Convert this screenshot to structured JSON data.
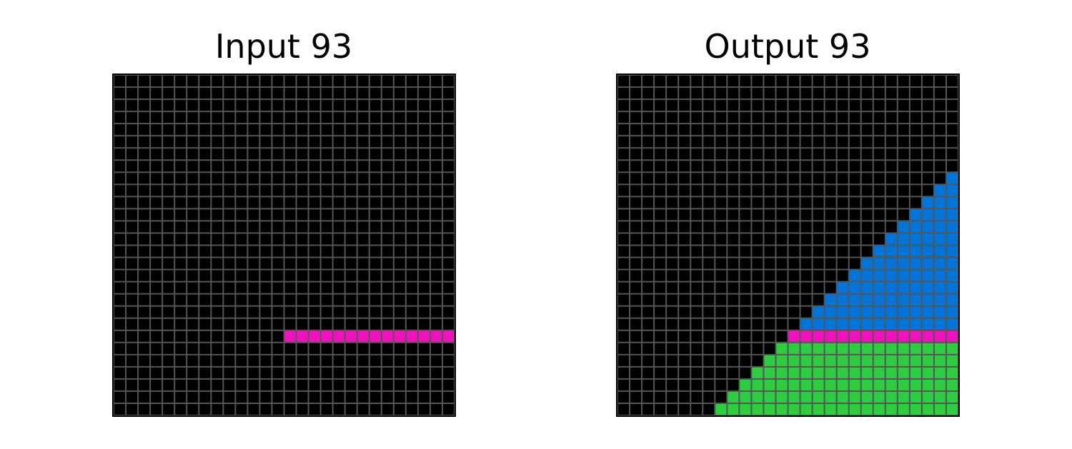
{
  "panels": [
    {
      "title": "Input 93",
      "grid_size": 28,
      "segments": [
        {
          "row": 21,
          "col_start": 14,
          "col_end": 27,
          "color": "magenta"
        }
      ]
    },
    {
      "title": "Output 93",
      "grid_size": 28,
      "segments": [
        {
          "row": 8,
          "col_start": 27,
          "col_end": 27,
          "color": "blue"
        },
        {
          "row": 9,
          "col_start": 26,
          "col_end": 27,
          "color": "blue"
        },
        {
          "row": 10,
          "col_start": 25,
          "col_end": 27,
          "color": "blue"
        },
        {
          "row": 11,
          "col_start": 24,
          "col_end": 27,
          "color": "blue"
        },
        {
          "row": 12,
          "col_start": 23,
          "col_end": 27,
          "color": "blue"
        },
        {
          "row": 13,
          "col_start": 22,
          "col_end": 27,
          "color": "blue"
        },
        {
          "row": 14,
          "col_start": 21,
          "col_end": 27,
          "color": "blue"
        },
        {
          "row": 15,
          "col_start": 20,
          "col_end": 27,
          "color": "blue"
        },
        {
          "row": 16,
          "col_start": 19,
          "col_end": 27,
          "color": "blue"
        },
        {
          "row": 17,
          "col_start": 18,
          "col_end": 27,
          "color": "blue"
        },
        {
          "row": 18,
          "col_start": 17,
          "col_end": 27,
          "color": "blue"
        },
        {
          "row": 19,
          "col_start": 16,
          "col_end": 27,
          "color": "blue"
        },
        {
          "row": 20,
          "col_start": 15,
          "col_end": 27,
          "color": "blue"
        },
        {
          "row": 21,
          "col_start": 14,
          "col_end": 27,
          "color": "magenta"
        },
        {
          "row": 22,
          "col_start": 13,
          "col_end": 27,
          "color": "green"
        },
        {
          "row": 23,
          "col_start": 12,
          "col_end": 27,
          "color": "green"
        },
        {
          "row": 24,
          "col_start": 11,
          "col_end": 27,
          "color": "green"
        },
        {
          "row": 25,
          "col_start": 10,
          "col_end": 27,
          "color": "green"
        },
        {
          "row": 26,
          "col_start": 9,
          "col_end": 27,
          "color": "green"
        },
        {
          "row": 27,
          "col_start": 8,
          "col_end": 27,
          "color": "green"
        }
      ]
    }
  ],
  "colors": {
    "background": "#000000",
    "gridline": "#555555",
    "magenta": "#F012BE",
    "blue": "#0074D9",
    "green": "#2ECC40"
  }
}
